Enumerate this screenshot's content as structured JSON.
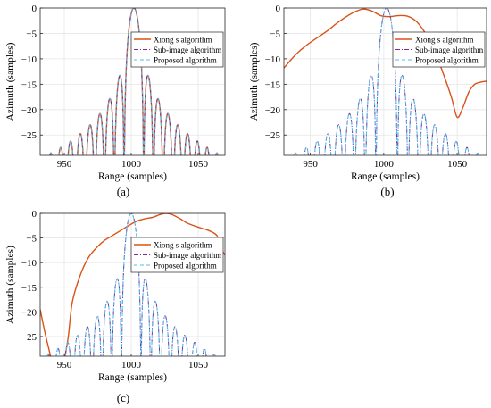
{
  "figure": {
    "panel_labels": [
      "(a)",
      "(b)",
      "(c)"
    ]
  },
  "colors": {
    "xiong": "#d95319",
    "subimage": "#7e2f8e",
    "proposed": "#4dbeee",
    "grid": "#e6e6e6",
    "axis": "#262626"
  },
  "chart_data": [
    {
      "type": "line",
      "panel": "(a)",
      "xlabel": "Range (samples)",
      "ylabel": "Azimuth (samples)",
      "xlim": [
        932,
        1070
      ],
      "ylim": [
        -29,
        0
      ],
      "xticks": [
        950,
        1000,
        1050
      ],
      "yticks": [
        0,
        -5,
        -10,
        -15,
        -20,
        -25
      ],
      "grid": true,
      "legend": "top-right",
      "series": [
        {
          "name": "Xiong s algorithm",
          "style": "solid",
          "profile": "sinc",
          "center": 1002,
          "peak": 0
        },
        {
          "name": "Sub-image algorithm",
          "style": "dashdot",
          "profile": "sinc",
          "center": 1002,
          "peak": 0
        },
        {
          "name": "Proposed algorithm",
          "style": "dashed",
          "profile": "sinc",
          "center": 1002,
          "peak": 0
        }
      ]
    },
    {
      "type": "line",
      "panel": "(b)",
      "xlabel": "Range (samples)",
      "ylabel": "Azimuth (samples)",
      "xlim": [
        932,
        1070
      ],
      "ylim": [
        -29,
        0
      ],
      "xticks": [
        950,
        1000,
        1050
      ],
      "yticks": [
        0,
        -5,
        -10,
        -15,
        -20,
        -25
      ],
      "grid": true,
      "legend": "top-right",
      "series": [
        {
          "name": "Xiong s algorithm",
          "style": "solid",
          "profile": "points",
          "x": [
            932,
            940,
            948,
            956,
            962,
            968,
            974,
            980,
            986,
            992,
            998,
            1004,
            1010,
            1016,
            1022,
            1028,
            1034,
            1040,
            1046,
            1050,
            1054,
            1058,
            1062,
            1066,
            1070
          ],
          "y": [
            -11.8,
            -9.2,
            -7.2,
            -5.6,
            -4.4,
            -3.0,
            -1.8,
            -0.8,
            -0.2,
            -0.6,
            -1.5,
            -1.7,
            -1.5,
            -1.6,
            -2.6,
            -4.8,
            -8.0,
            -12.5,
            -17.5,
            -21.5,
            -19.5,
            -16.5,
            -15.0,
            -14.6,
            -14.4
          ]
        },
        {
          "name": "Sub-image algorithm",
          "style": "dashdot",
          "profile": "sinc",
          "center": 1002,
          "peak": 0
        },
        {
          "name": "Proposed algorithm",
          "style": "dashed",
          "profile": "sinc",
          "center": 1002,
          "peak": 0
        }
      ]
    },
    {
      "type": "line",
      "panel": "(c)",
      "xlabel": "Range (samples)",
      "ylabel": "Azimuth (samples)",
      "xlim": [
        932,
        1070
      ],
      "ylim": [
        -29,
        0
      ],
      "xticks": [
        950,
        1000,
        1050
      ],
      "yticks": [
        0,
        -5,
        -10,
        -15,
        -20,
        -25
      ],
      "grid": true,
      "legend": "top-right",
      "series": [
        {
          "name": "Xiong s algorithm",
          "style": "solid",
          "profile": "points",
          "x": [
            932,
            935,
            938,
            941,
            944,
            948,
            950,
            953,
            956,
            962,
            968,
            974,
            980,
            986,
            992,
            998,
            1004,
            1010,
            1016,
            1022,
            1026,
            1030,
            1036,
            1042,
            1050,
            1058,
            1064,
            1066,
            1070
          ],
          "y": [
            -19.5,
            -23.5,
            -27.0,
            -30.0,
            -29.5,
            -30.0,
            -29.5,
            -25.0,
            -18.0,
            -12.5,
            -9.0,
            -7.0,
            -5.5,
            -4.5,
            -3.5,
            -2.5,
            -1.6,
            -1.1,
            -0.8,
            -0.2,
            0.0,
            -0.2,
            -1.0,
            -2.0,
            -2.8,
            -3.5,
            -4.5,
            -6.5,
            -8.5
          ]
        },
        {
          "name": "Sub-image algorithm",
          "style": "dashdot",
          "profile": "sinc",
          "center": 1000,
          "peak": 0
        },
        {
          "name": "Proposed algorithm",
          "style": "dashed",
          "profile": "sinc",
          "center": 1000,
          "peak": 0
        }
      ]
    }
  ]
}
